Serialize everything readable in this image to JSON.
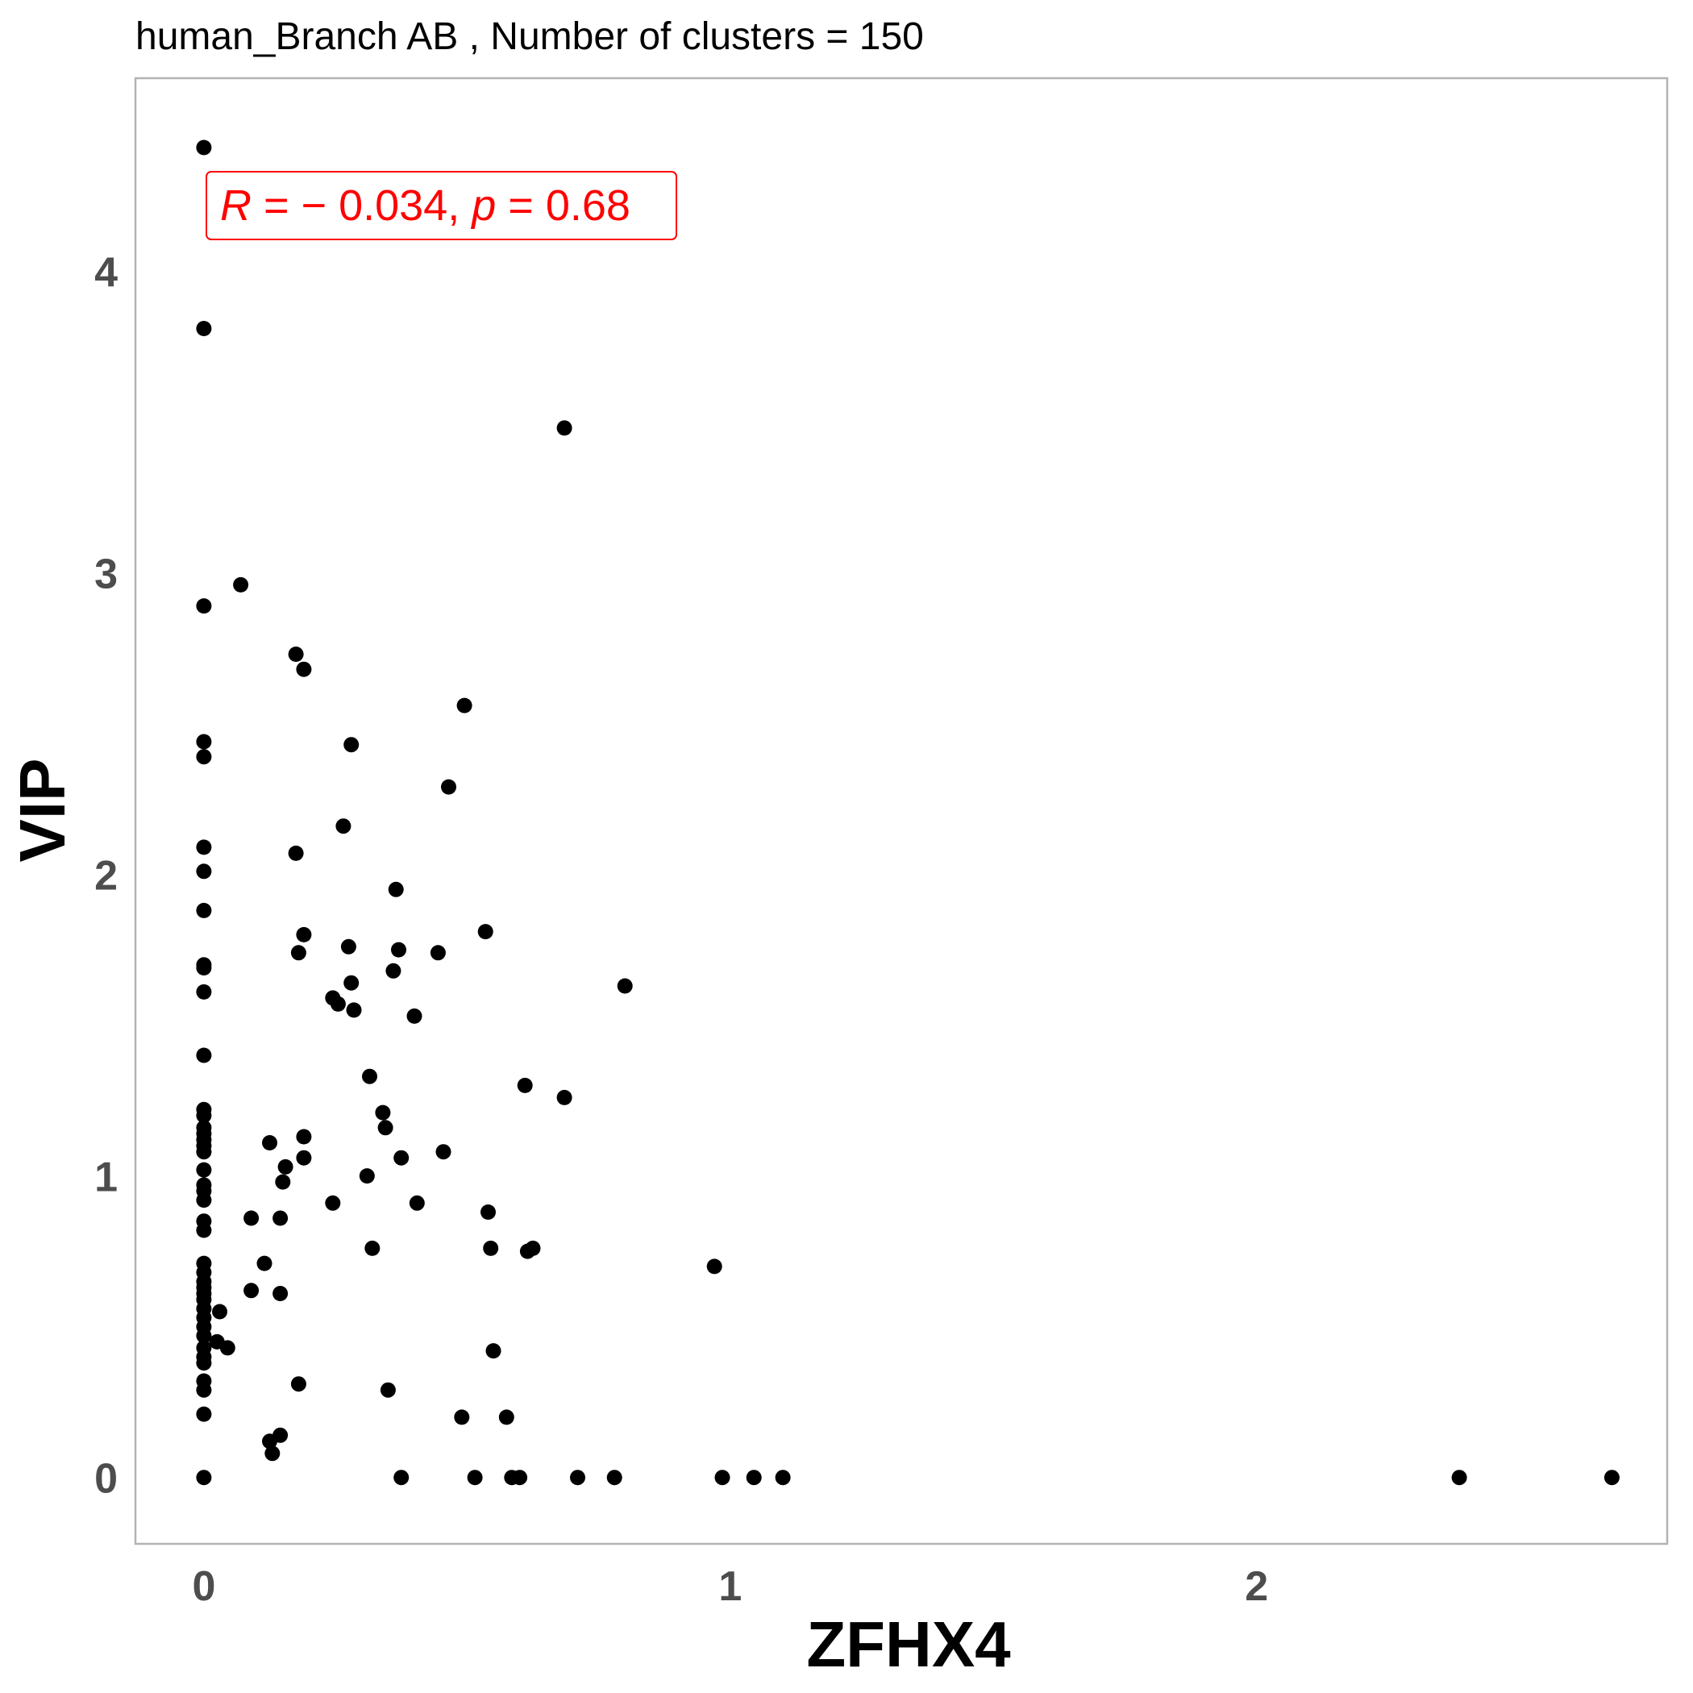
{
  "chart_data": {
    "type": "scatter",
    "title": "human_Branch AB , Number of clusters =  150",
    "xlabel": "ZFHX4",
    "ylabel": "VIP",
    "xlim": [
      -0.13,
      2.78
    ],
    "ylim": [
      -0.22,
      4.64
    ],
    "x_ticks": [
      0,
      1,
      2
    ],
    "x_tick_labels": [
      "0",
      "1",
      "2"
    ],
    "y_ticks": [
      0,
      1,
      2,
      3,
      4
    ],
    "y_tick_labels": [
      "0",
      "1",
      "2",
      "3",
      "4"
    ],
    "grid": false,
    "point_color": "#000000",
    "annotation": {
      "r_symbol": "R",
      "r_equals": " = ",
      "r_value": "− 0.034",
      "sep": ", ",
      "p_symbol": "p",
      "p_equals": " = ",
      "p_value": "0.68",
      "color": "#ff0000",
      "position": "top-left"
    },
    "points": [
      [
        0,
        4.41
      ],
      [
        0,
        3.81
      ],
      [
        0,
        2.89
      ],
      [
        0,
        2.44
      ],
      [
        0,
        2.39
      ],
      [
        0,
        2.09
      ],
      [
        0,
        2.01
      ],
      [
        0,
        1.88
      ],
      [
        0,
        1.7
      ],
      [
        0,
        1.69
      ],
      [
        0,
        1.61
      ],
      [
        0,
        1.4
      ],
      [
        0,
        1.22
      ],
      [
        0,
        1.2
      ],
      [
        0,
        1.16
      ],
      [
        0,
        1.14
      ],
      [
        0,
        1.12
      ],
      [
        0,
        1.1
      ],
      [
        0,
        1.08
      ],
      [
        0,
        1.02
      ],
      [
        0,
        0.97
      ],
      [
        0,
        0.95
      ],
      [
        0,
        0.92
      ],
      [
        0,
        0.85
      ],
      [
        0,
        0.82
      ],
      [
        0,
        0.71
      ],
      [
        0,
        0.68
      ],
      [
        0,
        0.65
      ],
      [
        0,
        0.63
      ],
      [
        0,
        0.61
      ],
      [
        0,
        0.59
      ],
      [
        0,
        0.56
      ],
      [
        0,
        0.53
      ],
      [
        0,
        0.5
      ],
      [
        0,
        0.47
      ],
      [
        0,
        0.43
      ],
      [
        0,
        0.4
      ],
      [
        0,
        0.38
      ],
      [
        0,
        0.32
      ],
      [
        0,
        0.29
      ],
      [
        0,
        0.21
      ],
      [
        0,
        0.0
      ],
      [
        0.07,
        2.96
      ],
      [
        0.03,
        0.55
      ],
      [
        0.025,
        0.45
      ],
      [
        0.045,
        0.43
      ],
      [
        0.09,
        0.86
      ],
      [
        0.09,
        0.62
      ],
      [
        0.115,
        0.71
      ],
      [
        0.125,
        1.11
      ],
      [
        0.125,
        0.12
      ],
      [
        0.13,
        0.08
      ],
      [
        0.145,
        0.86
      ],
      [
        0.145,
        0.61
      ],
      [
        0.145,
        0.14
      ],
      [
        0.15,
        0.98
      ],
      [
        0.155,
        1.03
      ],
      [
        0.175,
        2.73
      ],
      [
        0.175,
        2.07
      ],
      [
        0.18,
        1.74
      ],
      [
        0.18,
        0.31
      ],
      [
        0.19,
        2.68
      ],
      [
        0.19,
        1.8
      ],
      [
        0.19,
        1.13
      ],
      [
        0.19,
        1.06
      ],
      [
        0.245,
        1.59
      ],
      [
        0.245,
        0.91
      ],
      [
        0.255,
        1.57
      ],
      [
        0.265,
        2.16
      ],
      [
        0.275,
        1.76
      ],
      [
        0.28,
        2.43
      ],
      [
        0.28,
        1.64
      ],
      [
        0.285,
        1.55
      ],
      [
        0.31,
        1.0
      ],
      [
        0.315,
        1.33
      ],
      [
        0.32,
        0.76
      ],
      [
        0.34,
        1.21
      ],
      [
        0.345,
        1.16
      ],
      [
        0.35,
        0.29
      ],
      [
        0.36,
        1.68
      ],
      [
        0.365,
        1.95
      ],
      [
        0.37,
        1.75
      ],
      [
        0.375,
        1.06
      ],
      [
        0.375,
        0.0
      ],
      [
        0.4,
        1.53
      ],
      [
        0.405,
        0.91
      ],
      [
        0.445,
        1.74
      ],
      [
        0.455,
        1.08
      ],
      [
        0.465,
        2.29
      ],
      [
        0.49,
        0.2
      ],
      [
        0.495,
        2.56
      ],
      [
        0.515,
        0.0
      ],
      [
        0.535,
        1.81
      ],
      [
        0.54,
        0.88
      ],
      [
        0.545,
        0.76
      ],
      [
        0.55,
        0.42
      ],
      [
        0.575,
        0.2
      ],
      [
        0.585,
        0.0
      ],
      [
        0.6,
        0.0
      ],
      [
        0.61,
        1.3
      ],
      [
        0.615,
        0.75
      ],
      [
        0.625,
        0.76
      ],
      [
        0.685,
        3.48
      ],
      [
        0.685,
        1.26
      ],
      [
        0.71,
        0.0
      ],
      [
        0.78,
        0.0
      ],
      [
        0.8,
        1.63
      ],
      [
        0.97,
        0.7
      ],
      [
        0.985,
        0.0
      ],
      [
        1.045,
        0.0
      ],
      [
        1.1,
        0.0
      ],
      [
        2.385,
        0.0
      ],
      [
        2.675,
        0.0
      ]
    ]
  }
}
